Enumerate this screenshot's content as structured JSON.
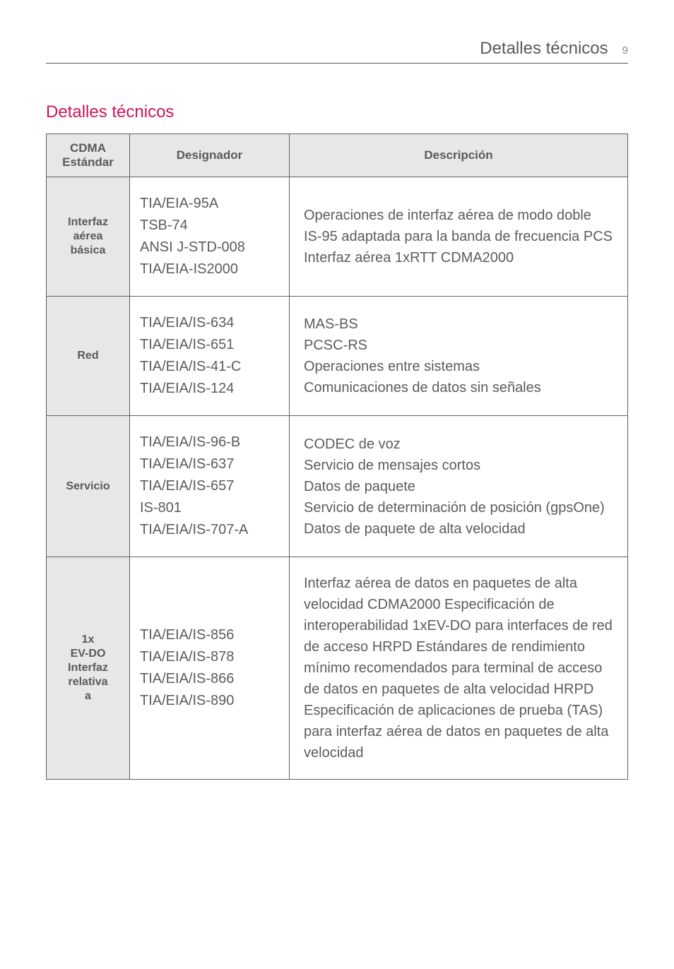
{
  "colors": {
    "accent": "#cf145b",
    "text": "#595959",
    "cellText": "#5c5c5c",
    "headerBg": "#e7e7e7",
    "border": "#606060",
    "pageNum": "#898989"
  },
  "header": {
    "title": "Detalles técnicos",
    "pageNumber": "9"
  },
  "sectionTitle": "Detalles técnicos",
  "table": {
    "columns": [
      "CDMA Estándar",
      "Designador",
      "Descripción"
    ],
    "rows": [
      {
        "head": "Interfaz aérea básica",
        "designador": [
          "TIA/EIA-95A",
          "TSB-74",
          "ANSI J-STD-008",
          "TIA/EIA-IS2000"
        ],
        "descripcion": [
          "Operaciones de interfaz aérea de modo doble",
          "IS-95 adaptada para la banda de frecuencia PCS",
          "Interfaz aérea 1xRTT CDMA2000"
        ]
      },
      {
        "head": "Red",
        "designador": [
          "TIA/EIA/IS-634",
          "TIA/EIA/IS-651",
          "TIA/EIA/IS-41-C",
          "TIA/EIA/IS-124"
        ],
        "descripcion": [
          "MAS-BS",
          "PCSC-RS",
          "Operaciones entre sistemas",
          "Comunicaciones de datos sin señales"
        ]
      },
      {
        "head": "Servicio",
        "designador": [
          "TIA/EIA/IS-96-B",
          "TIA/EIA/IS-637",
          "TIA/EIA/IS-657",
          "IS-801",
          "TIA/EIA/IS-707-A"
        ],
        "descripcion": [
          "CODEC de voz",
          "Servicio de mensajes cortos",
          "Datos de paquete",
          "Servicio de determinación de posición (gpsOne)",
          "Datos de paquete de alta velocidad"
        ]
      },
      {
        "head": "1x EV-DO Interfaz relativa a",
        "designador": [
          "TIA/EIA/IS-856",
          "TIA/EIA/IS-878",
          "TIA/EIA/IS-866",
          "TIA/EIA/IS-890"
        ],
        "descripcion": [
          "Interfaz aérea de datos en paquetes de alta velocidad CDMA2000 Especificación de interoperabilidad 1xEV-DO para interfaces de red de acceso HRPD Estándares de rendimiento mínimo recomendados para terminal de acceso de datos en paquetes de alta velocidad HRPD Especificación de aplicaciones de prueba (TAS) para interfaz aérea de datos en paquetes de alta velocidad"
        ]
      }
    ]
  }
}
